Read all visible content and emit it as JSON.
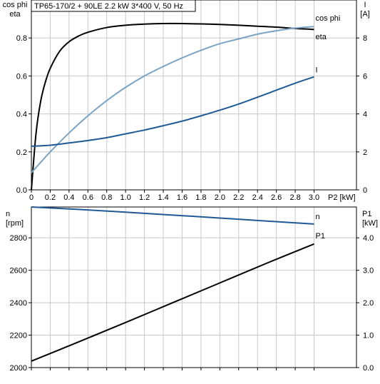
{
  "title": "TP65-170/2 + 90LE   2.2 kW   3*400 V, 50 Hz",
  "colors": {
    "black": "#000000",
    "light_blue": "#7ba3c4",
    "dark_blue": "#1f5a94",
    "grid": "#c8c8c8"
  },
  "top_axes": {
    "left_label_line1": "cos phi",
    "left_label_line2": "eta",
    "right_label_line1": "I",
    "right_label_line2": "[A]",
    "x_label": "P2 [kW]"
  },
  "bottom_axes": {
    "left_label_line1": "n",
    "left_label_line2": "[rpm]",
    "right_label_line1": "P1",
    "right_label_line2": "[kW]"
  },
  "chart_data": [
    {
      "type": "line",
      "x_ticks": [
        "0",
        "0.2",
        "0.4",
        "0.6",
        "0.8",
        "1.0",
        "1.2",
        "1.4",
        "1.6",
        "1.8",
        "2.0",
        "2.2",
        "2.4",
        "2.6",
        "2.8",
        "3.0"
      ],
      "xlim": [
        0,
        3.45
      ],
      "left_ticks": [
        "0.0",
        "0.2",
        "0.4",
        "0.6",
        "0.8"
      ],
      "ylim_left": [
        0,
        1.0
      ],
      "right_ticks": [
        "0",
        "2",
        "4",
        "6",
        "8"
      ],
      "ylim_right": [
        0,
        10
      ],
      "grid": true,
      "series": [
        {
          "name": "eta",
          "axis": "left",
          "color": "#000000",
          "x": [
            0.0,
            0.05,
            0.1,
            0.15,
            0.2,
            0.3,
            0.4,
            0.5,
            0.6,
            0.8,
            1.0,
            1.2,
            1.4,
            1.6,
            1.8,
            2.0,
            2.2,
            2.4,
            2.6,
            2.8,
            3.0
          ],
          "y": [
            0.0,
            0.3,
            0.47,
            0.57,
            0.64,
            0.73,
            0.78,
            0.81,
            0.83,
            0.855,
            0.867,
            0.873,
            0.876,
            0.876,
            0.874,
            0.871,
            0.867,
            0.862,
            0.857,
            0.85,
            0.845
          ]
        },
        {
          "name": "cos phi",
          "axis": "left",
          "color": "#7ba3c4",
          "x": [
            0.0,
            0.2,
            0.4,
            0.6,
            0.8,
            1.0,
            1.2,
            1.4,
            1.6,
            1.8,
            2.0,
            2.2,
            2.4,
            2.6,
            2.8,
            3.0
          ],
          "y": [
            0.09,
            0.2,
            0.3,
            0.39,
            0.47,
            0.54,
            0.6,
            0.65,
            0.695,
            0.735,
            0.77,
            0.795,
            0.82,
            0.838,
            0.852,
            0.86
          ]
        },
        {
          "name": "I",
          "axis": "right",
          "color": "#1f5a94",
          "x": [
            0.0,
            0.2,
            0.4,
            0.6,
            0.8,
            1.0,
            1.2,
            1.4,
            1.6,
            1.8,
            2.0,
            2.2,
            2.4,
            2.6,
            2.8,
            3.0
          ],
          "y": [
            2.3,
            2.35,
            2.47,
            2.6,
            2.75,
            2.95,
            3.15,
            3.38,
            3.62,
            3.9,
            4.2,
            4.52,
            4.88,
            5.25,
            5.62,
            5.95
          ]
        }
      ]
    },
    {
      "type": "line",
      "xlim": [
        0,
        3.45
      ],
      "left_ticks": [
        "2000",
        "2200",
        "2400",
        "2600",
        "2800"
      ],
      "ylim_left": [
        2000,
        2990
      ],
      "right_ticks": [
        "0.0",
        "1.0",
        "2.0",
        "3.0",
        "4.0"
      ],
      "ylim_right": [
        0,
        4.95
      ],
      "grid": true,
      "series": [
        {
          "name": "n",
          "axis": "left",
          "color": "#1f5a94",
          "x": [
            0.0,
            0.5,
            1.0,
            1.5,
            2.0,
            2.5,
            3.0
          ],
          "y": [
            2990,
            2975,
            2958,
            2940,
            2922,
            2903,
            2885
          ]
        },
        {
          "name": "P1",
          "axis": "right",
          "color": "#000000",
          "x": [
            0.0,
            0.5,
            1.0,
            1.5,
            2.0,
            2.5,
            3.0
          ],
          "y": [
            0.2,
            0.79,
            1.39,
            2.0,
            2.61,
            3.22,
            3.81
          ]
        }
      ]
    }
  ]
}
